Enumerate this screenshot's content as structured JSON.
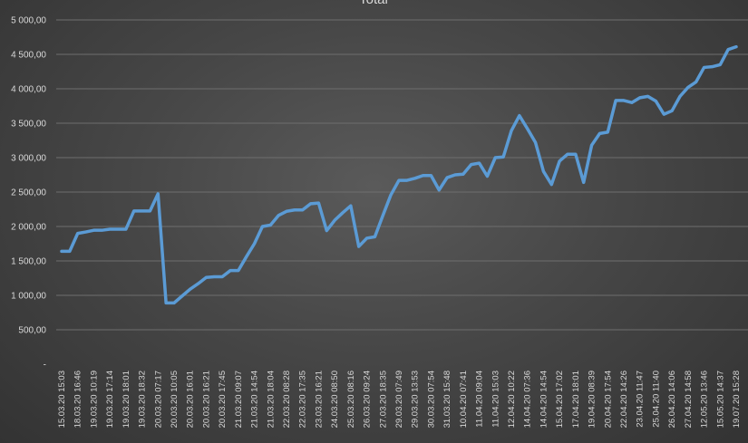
{
  "chart_data": {
    "type": "line",
    "title": "Total",
    "ylim": [
      0,
      5000
    ],
    "yticks": [
      {
        "value": 0,
        "label": "-"
      },
      {
        "value": 500,
        "label": "500,00"
      },
      {
        "value": 1000,
        "label": "1 000,00"
      },
      {
        "value": 1500,
        "label": "1 500,00"
      },
      {
        "value": 2000,
        "label": "2 000,00"
      },
      {
        "value": 2500,
        "label": "2 500,00"
      },
      {
        "value": 3000,
        "label": "3 000,00"
      },
      {
        "value": 3500,
        "label": "3 500,00"
      },
      {
        "value": 4000,
        "label": "4 000,00"
      },
      {
        "value": 4500,
        "label": "4 500,00"
      },
      {
        "value": 5000,
        "label": "5 000,00"
      }
    ],
    "xtick_labels": [
      "15.03.20 15:03",
      "18.03.20 16:46",
      "19.03.20 10:19",
      "19.03.20 17:14",
      "19.03.20 18:01",
      "19.03.20 18:32",
      "20.03.20 07:17",
      "20.03.20 10:05",
      "20.03.20 16:01",
      "20.03.20 16:21",
      "20.03.20 17:45",
      "21.03.20 09:07",
      "21.03.20 14:54",
      "21.03.20 18:04",
      "22.03.20 08:28",
      "22.03.20 17:35",
      "23.03.20 16:21",
      "24.03.20 08:50",
      "25.03.20 08:16",
      "26.03.20 09:24",
      "27.03.20 18:35",
      "29.03.20 07:49",
      "29.03.20 13:53",
      "30.03.20 07:54",
      "31.03.20 15:48",
      "10.04.20 07:41",
      "11.04.20 09:04",
      "11.04.20 15:03",
      "12.04.20 10:22",
      "14.04.20 07:36",
      "14.04.20 14:54",
      "15.04.20 17:02",
      "17.04.20 18:01",
      "19.04.20 08:39",
      "20.04.20 17:54",
      "22.04.20 14:26",
      "23.04.20 11:47",
      "25.04.20 11:40",
      "26.04.20 14:06",
      "27.04.20 14:58",
      "12.05.20 13:46",
      "15.05.20 14:37",
      "19.07.20 15:28"
    ],
    "series": [
      {
        "color": "#5b9bd5",
        "values": [
          1640,
          1640,
          1900,
          1920,
          1945,
          1945,
          1960,
          1960,
          1960,
          2225,
          2225,
          2225,
          2475,
          890,
          890,
          990,
          1090,
          1170,
          1260,
          1270,
          1270,
          1360,
          1360,
          1560,
          1750,
          2000,
          2020,
          2160,
          2220,
          2240,
          2240,
          2330,
          2340,
          1940,
          2090,
          2200,
          2300,
          1710,
          1830,
          1850,
          2160,
          2460,
          2670,
          2670,
          2700,
          2740,
          2740,
          2530,
          2710,
          2750,
          2760,
          2900,
          2920,
          2730,
          3000,
          3010,
          3390,
          3610,
          3420,
          3220,
          2800,
          2610,
          2950,
          3050,
          3050,
          2640,
          3180,
          3350,
          3370,
          3830,
          3830,
          3800,
          3870,
          3890,
          3820,
          3630,
          3680,
          3890,
          4020,
          4100,
          4310,
          4320,
          4350,
          4570,
          4610
        ]
      }
    ]
  }
}
